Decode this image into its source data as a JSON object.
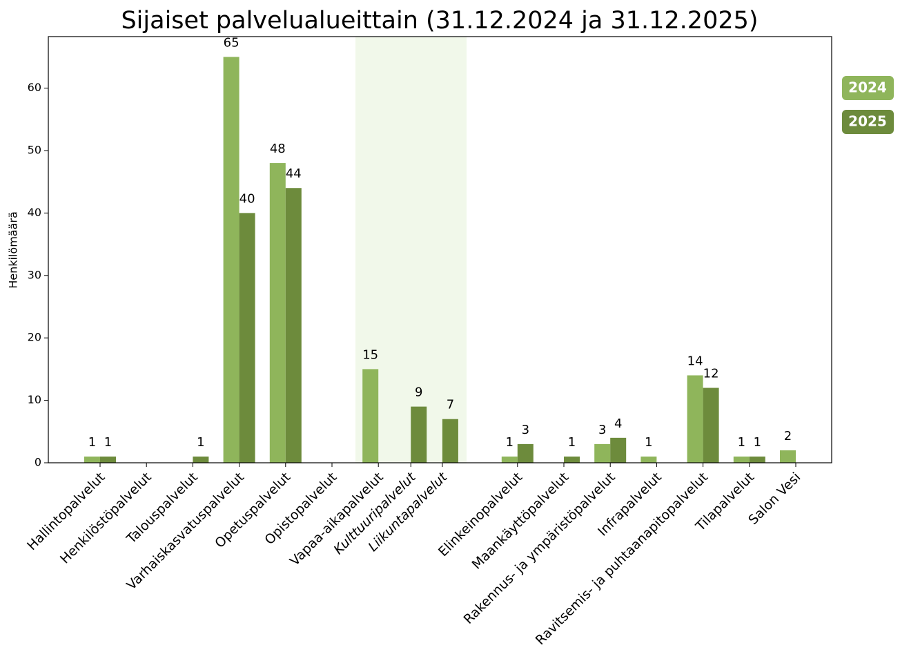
{
  "chart_data": {
    "type": "bar",
    "title": "Sijaiset palvelualueittain (31.12.2024 ja 31.12.2025)",
    "y_label": "Henkilömäärä",
    "categories": [
      "Hallintopalvelut",
      "Henkilöstöpalvelut",
      "Talouspalvelut",
      "Varhaiskasvatuspalvelut",
      "Opetuspalvelut",
      "Opistopalvelut",
      "Vapaa-aikapalvelut",
      "Kulttuuripalvelut",
      "Liikuntapalvelut",
      "Elinkeinopalvelut",
      "Maankäyttöpalvelut",
      "Rakennus- ja ympäristöpalvelut",
      "Infrapalvelut",
      "Ravitsemis- ja puhtaanapitopalvelut",
      "Tilapalvelut",
      "Salon Vesi"
    ],
    "series": [
      {
        "name": "2024",
        "color": "#8fb55b",
        "values": [
          1,
          null,
          null,
          65,
          48,
          null,
          15,
          null,
          null,
          1,
          null,
          3,
          1,
          14,
          1,
          2
        ]
      },
      {
        "name": "2025",
        "color": "#6d8b3c",
        "values": [
          1,
          null,
          1,
          40,
          44,
          null,
          null,
          9,
          7,
          3,
          1,
          4,
          null,
          12,
          1,
          null
        ]
      }
    ],
    "ylim": [
      0,
      68.25
    ],
    "yticks": [
      0,
      10,
      20,
      30,
      40,
      50,
      60
    ],
    "legend": "right"
  }
}
